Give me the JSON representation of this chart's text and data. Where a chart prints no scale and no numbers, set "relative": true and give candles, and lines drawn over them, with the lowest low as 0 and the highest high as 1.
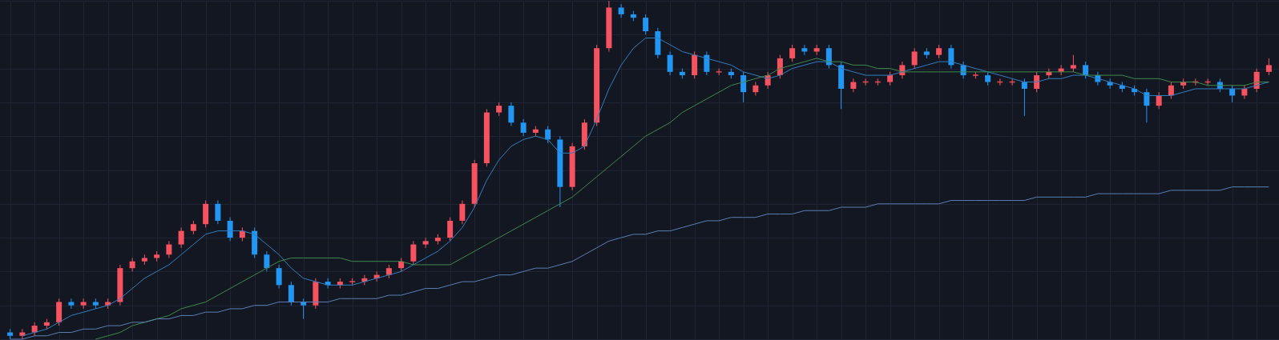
{
  "chart_data": {
    "type": "candlestick",
    "relative": true,
    "tick_labels": false,
    "grid": true,
    "categories": [
      null,
      null,
      null,
      null,
      null,
      null,
      null,
      null,
      null,
      null,
      null,
      null,
      null,
      null,
      null,
      null,
      null,
      null,
      null,
      null,
      null,
      null,
      null,
      null,
      null,
      null,
      null,
      null,
      null,
      null,
      null,
      null,
      null,
      null,
      null,
      null,
      null,
      null,
      null,
      null,
      null,
      null,
      null,
      null,
      null,
      null,
      null,
      null,
      null,
      null,
      null,
      null,
      null,
      null,
      null,
      null,
      null,
      null,
      null,
      null,
      null,
      null,
      null,
      null,
      null,
      null,
      null,
      null,
      null,
      null,
      null,
      null,
      null,
      null,
      null,
      null,
      null,
      null,
      null,
      null,
      null,
      null,
      null,
      null,
      null,
      null,
      null,
      null,
      null,
      null,
      null,
      null,
      null,
      null,
      null,
      null,
      null,
      null,
      null,
      null,
      null,
      null,
      null,
      null
    ],
    "ohlc": [
      [
        0.02,
        0.03,
        0.0,
        0.01
      ],
      [
        0.01,
        0.03,
        0.0,
        0.02
      ],
      [
        0.02,
        0.05,
        0.01,
        0.04
      ],
      [
        0.04,
        0.06,
        0.03,
        0.05
      ],
      [
        0.05,
        0.12,
        0.04,
        0.11
      ],
      [
        0.11,
        0.12,
        0.09,
        0.1
      ],
      [
        0.1,
        0.12,
        0.09,
        0.11
      ],
      [
        0.11,
        0.12,
        0.09,
        0.1
      ],
      [
        0.1,
        0.12,
        0.09,
        0.11
      ],
      [
        0.11,
        0.22,
        0.1,
        0.21
      ],
      [
        0.21,
        0.24,
        0.2,
        0.23
      ],
      [
        0.23,
        0.25,
        0.22,
        0.24
      ],
      [
        0.24,
        0.26,
        0.23,
        0.25
      ],
      [
        0.25,
        0.29,
        0.24,
        0.28
      ],
      [
        0.28,
        0.33,
        0.27,
        0.32
      ],
      [
        0.32,
        0.35,
        0.31,
        0.34
      ],
      [
        0.34,
        0.41,
        0.33,
        0.4
      ],
      [
        0.4,
        0.41,
        0.34,
        0.35
      ],
      [
        0.35,
        0.36,
        0.29,
        0.3
      ],
      [
        0.3,
        0.33,
        0.29,
        0.32
      ],
      [
        0.32,
        0.33,
        0.24,
        0.25
      ],
      [
        0.25,
        0.26,
        0.2,
        0.21
      ],
      [
        0.21,
        0.22,
        0.15,
        0.16
      ],
      [
        0.16,
        0.17,
        0.1,
        0.11
      ],
      [
        0.11,
        0.12,
        0.06,
        0.1
      ],
      [
        0.1,
        0.18,
        0.09,
        0.17
      ],
      [
        0.17,
        0.18,
        0.15,
        0.16
      ],
      [
        0.16,
        0.18,
        0.15,
        0.17
      ],
      [
        0.17,
        0.18,
        0.16,
        0.17
      ],
      [
        0.17,
        0.19,
        0.16,
        0.18
      ],
      [
        0.18,
        0.2,
        0.17,
        0.19
      ],
      [
        0.19,
        0.22,
        0.18,
        0.21
      ],
      [
        0.21,
        0.24,
        0.2,
        0.23
      ],
      [
        0.23,
        0.29,
        0.22,
        0.28
      ],
      [
        0.28,
        0.3,
        0.27,
        0.29
      ],
      [
        0.29,
        0.31,
        0.28,
        0.3
      ],
      [
        0.3,
        0.36,
        0.29,
        0.35
      ],
      [
        0.35,
        0.41,
        0.34,
        0.4
      ],
      [
        0.4,
        0.53,
        0.39,
        0.52
      ],
      [
        0.52,
        0.68,
        0.51,
        0.67
      ],
      [
        0.67,
        0.7,
        0.66,
        0.69
      ],
      [
        0.69,
        0.7,
        0.63,
        0.64
      ],
      [
        0.64,
        0.65,
        0.6,
        0.61
      ],
      [
        0.61,
        0.63,
        0.6,
        0.62
      ],
      [
        0.62,
        0.63,
        0.58,
        0.59
      ],
      [
        0.59,
        0.6,
        0.39,
        0.45
      ],
      [
        0.45,
        0.58,
        0.44,
        0.57
      ],
      [
        0.57,
        0.65,
        0.56,
        0.64
      ],
      [
        0.64,
        0.87,
        0.63,
        0.86
      ],
      [
        0.86,
        1.0,
        0.85,
        0.98
      ],
      [
        0.98,
        0.99,
        0.95,
        0.96
      ],
      [
        0.96,
        0.97,
        0.94,
        0.95
      ],
      [
        0.95,
        0.96,
        0.9,
        0.91
      ],
      [
        0.91,
        0.92,
        0.83,
        0.84
      ],
      [
        0.84,
        0.85,
        0.78,
        0.79
      ],
      [
        0.79,
        0.8,
        0.77,
        0.78
      ],
      [
        0.78,
        0.85,
        0.77,
        0.84
      ],
      [
        0.84,
        0.85,
        0.78,
        0.79
      ],
      [
        0.79,
        0.8,
        0.78,
        0.79
      ],
      [
        0.79,
        0.8,
        0.77,
        0.78
      ],
      [
        0.78,
        0.79,
        0.7,
        0.73
      ],
      [
        0.73,
        0.76,
        0.72,
        0.75
      ],
      [
        0.75,
        0.79,
        0.74,
        0.78
      ],
      [
        0.78,
        0.84,
        0.77,
        0.83
      ],
      [
        0.83,
        0.87,
        0.82,
        0.86
      ],
      [
        0.86,
        0.87,
        0.84,
        0.85
      ],
      [
        0.85,
        0.87,
        0.84,
        0.86
      ],
      [
        0.86,
        0.87,
        0.8,
        0.81
      ],
      [
        0.81,
        0.82,
        0.68,
        0.74
      ],
      [
        0.74,
        0.77,
        0.73,
        0.76
      ],
      [
        0.76,
        0.77,
        0.75,
        0.76
      ],
      [
        0.76,
        0.77,
        0.75,
        0.76
      ],
      [
        0.76,
        0.79,
        0.75,
        0.78
      ],
      [
        0.78,
        0.82,
        0.77,
        0.81
      ],
      [
        0.81,
        0.86,
        0.8,
        0.85
      ],
      [
        0.85,
        0.86,
        0.83,
        0.84
      ],
      [
        0.84,
        0.87,
        0.83,
        0.86
      ],
      [
        0.86,
        0.87,
        0.8,
        0.81
      ],
      [
        0.81,
        0.82,
        0.77,
        0.78
      ],
      [
        0.78,
        0.79,
        0.77,
        0.78
      ],
      [
        0.78,
        0.79,
        0.75,
        0.76
      ],
      [
        0.76,
        0.77,
        0.75,
        0.76
      ],
      [
        0.76,
        0.77,
        0.75,
        0.76
      ],
      [
        0.76,
        0.77,
        0.66,
        0.74
      ],
      [
        0.74,
        0.79,
        0.73,
        0.78
      ],
      [
        0.78,
        0.8,
        0.77,
        0.79
      ],
      [
        0.79,
        0.81,
        0.78,
        0.8
      ],
      [
        0.8,
        0.84,
        0.79,
        0.81
      ],
      [
        0.81,
        0.82,
        0.77,
        0.78
      ],
      [
        0.78,
        0.79,
        0.75,
        0.76
      ],
      [
        0.76,
        0.77,
        0.74,
        0.75
      ],
      [
        0.75,
        0.76,
        0.73,
        0.74
      ],
      [
        0.74,
        0.75,
        0.72,
        0.73
      ],
      [
        0.73,
        0.74,
        0.64,
        0.69
      ],
      [
        0.69,
        0.73,
        0.68,
        0.72
      ],
      [
        0.72,
        0.76,
        0.71,
        0.75
      ],
      [
        0.75,
        0.77,
        0.74,
        0.76
      ],
      [
        0.76,
        0.77,
        0.75,
        0.76
      ],
      [
        0.76,
        0.77,
        0.75,
        0.76
      ],
      [
        0.76,
        0.77,
        0.73,
        0.74
      ],
      [
        0.74,
        0.75,
        0.7,
        0.72
      ],
      [
        0.72,
        0.75,
        0.71,
        0.74
      ],
      [
        0.74,
        0.8,
        0.73,
        0.79
      ],
      [
        0.79,
        0.83,
        0.78,
        0.81
      ]
    ],
    "colors": [
      "#2196f3",
      "#f7525f",
      "#f7525f",
      "#f7525f",
      "#f7525f",
      "#2196f3",
      "#f7525f",
      "#2196f3",
      "#f7525f",
      "#f7525f",
      "#f7525f",
      "#f7525f",
      "#f7525f",
      "#f7525f",
      "#f7525f",
      "#f7525f",
      "#f7525f",
      "#2196f3",
      "#2196f3",
      "#f7525f",
      "#2196f3",
      "#2196f3",
      "#2196f3",
      "#2196f3",
      "#2196f3",
      "#f7525f",
      "#2196f3",
      "#f7525f",
      "#f7525f",
      "#f7525f",
      "#f7525f",
      "#f7525f",
      "#f7525f",
      "#f7525f",
      "#f7525f",
      "#f7525f",
      "#f7525f",
      "#f7525f",
      "#f7525f",
      "#f7525f",
      "#f7525f",
      "#2196f3",
      "#2196f3",
      "#f7525f",
      "#2196f3",
      "#2196f3",
      "#f7525f",
      "#f7525f",
      "#f7525f",
      "#f7525f",
      "#2196f3",
      "#2196f3",
      "#2196f3",
      "#2196f3",
      "#2196f3",
      "#2196f3",
      "#f7525f",
      "#2196f3",
      "#f7525f",
      "#2196f3",
      "#2196f3",
      "#f7525f",
      "#f7525f",
      "#f7525f",
      "#f7525f",
      "#2196f3",
      "#f7525f",
      "#2196f3",
      "#2196f3",
      "#f7525f",
      "#f7525f",
      "#f7525f",
      "#f7525f",
      "#f7525f",
      "#f7525f",
      "#2196f3",
      "#f7525f",
      "#2196f3",
      "#2196f3",
      "#f7525f",
      "#2196f3",
      "#f7525f",
      "#f7525f",
      "#2196f3",
      "#f7525f",
      "#f7525f",
      "#f7525f",
      "#f7525f",
      "#2196f3",
      "#2196f3",
      "#2196f3",
      "#2196f3",
      "#2196f3",
      "#2196f3",
      "#f7525f",
      "#f7525f",
      "#f7525f",
      "#f7525f",
      "#f7525f",
      "#2196f3",
      "#2196f3",
      "#f7525f",
      "#f7525f",
      "#f7525f"
    ],
    "series": [
      {
        "type": "line",
        "color": "#2f7fc1",
        "values": [
          null,
          0.01,
          0.02,
          0.03,
          0.05,
          0.07,
          0.08,
          0.09,
          0.1,
          0.12,
          0.15,
          0.18,
          0.2,
          0.22,
          0.25,
          0.28,
          0.31,
          0.32,
          0.32,
          0.32,
          0.31,
          0.28,
          0.25,
          0.21,
          0.18,
          0.17,
          0.16,
          0.16,
          0.16,
          0.17,
          0.18,
          0.19,
          0.2,
          0.22,
          0.24,
          0.26,
          0.29,
          0.33,
          0.39,
          0.47,
          0.53,
          0.57,
          0.59,
          0.6,
          0.59,
          0.55,
          0.55,
          0.57,
          0.65,
          0.74,
          0.81,
          0.86,
          0.89,
          0.89,
          0.87,
          0.85,
          0.84,
          0.83,
          0.82,
          0.81,
          0.79,
          0.78,
          0.77,
          0.78,
          0.8,
          0.81,
          0.82,
          0.82,
          0.8,
          0.79,
          0.78,
          0.78,
          0.78,
          0.79,
          0.8,
          0.81,
          0.82,
          0.82,
          0.81,
          0.8,
          0.79,
          0.78,
          0.77,
          0.76,
          0.76,
          0.77,
          0.77,
          0.78,
          0.78,
          0.77,
          0.76,
          0.75,
          0.74,
          0.72,
          0.72,
          0.72,
          0.73,
          0.74,
          0.74,
          0.74,
          0.74,
          0.74,
          0.75,
          0.76
        ]
      },
      {
        "type": "line",
        "color": "#3d8b4a",
        "values": [
          null,
          null,
          null,
          null,
          null,
          null,
          null,
          0.0,
          0.01,
          0.02,
          0.04,
          0.05,
          0.06,
          0.07,
          0.09,
          0.1,
          0.11,
          0.13,
          0.15,
          0.17,
          0.19,
          0.21,
          0.23,
          0.24,
          0.24,
          0.24,
          0.24,
          0.24,
          0.23,
          0.23,
          0.23,
          0.23,
          0.23,
          0.22,
          0.22,
          0.22,
          0.22,
          0.24,
          0.26,
          0.28,
          0.3,
          0.32,
          0.34,
          0.36,
          0.38,
          0.4,
          0.42,
          0.45,
          0.48,
          0.51,
          0.54,
          0.57,
          0.6,
          0.62,
          0.64,
          0.67,
          0.69,
          0.71,
          0.73,
          0.75,
          0.76,
          0.77,
          0.78,
          0.8,
          0.81,
          0.82,
          0.83,
          0.82,
          0.82,
          0.81,
          0.81,
          0.8,
          0.8,
          0.79,
          0.79,
          0.79,
          0.79,
          0.79,
          0.79,
          0.79,
          0.79,
          0.79,
          0.79,
          0.79,
          0.79,
          0.79,
          0.79,
          0.79,
          0.78,
          0.78,
          0.78,
          0.78,
          0.77,
          0.77,
          0.77,
          0.76,
          0.76,
          0.76,
          0.75,
          0.75,
          0.75,
          0.75,
          0.76,
          0.76
        ]
      },
      {
        "type": "line",
        "color": "#5b7fb4",
        "values": [
          0.0,
          0.0,
          0.01,
          0.01,
          0.02,
          0.02,
          0.03,
          0.03,
          0.04,
          0.04,
          0.05,
          0.05,
          0.06,
          0.06,
          0.07,
          0.07,
          0.08,
          0.08,
          0.09,
          0.09,
          0.1,
          0.1,
          0.11,
          0.11,
          0.11,
          0.11,
          0.11,
          0.12,
          0.12,
          0.12,
          0.12,
          0.13,
          0.13,
          0.14,
          0.15,
          0.15,
          0.16,
          0.17,
          0.17,
          0.18,
          0.19,
          0.19,
          0.2,
          0.21,
          0.21,
          0.22,
          0.23,
          0.25,
          0.27,
          0.29,
          0.3,
          0.31,
          0.31,
          0.32,
          0.32,
          0.33,
          0.34,
          0.35,
          0.35,
          0.36,
          0.36,
          0.36,
          0.37,
          0.37,
          0.37,
          0.38,
          0.38,
          0.38,
          0.39,
          0.39,
          0.39,
          0.4,
          0.4,
          0.4,
          0.4,
          0.4,
          0.4,
          0.41,
          0.41,
          0.41,
          0.41,
          0.41,
          0.41,
          0.41,
          0.42,
          0.42,
          0.42,
          0.42,
          0.42,
          0.43,
          0.43,
          0.43,
          0.43,
          0.43,
          0.43,
          0.44,
          0.44,
          0.44,
          0.44,
          0.44,
          0.45,
          0.45,
          0.45,
          0.45
        ]
      }
    ]
  }
}
